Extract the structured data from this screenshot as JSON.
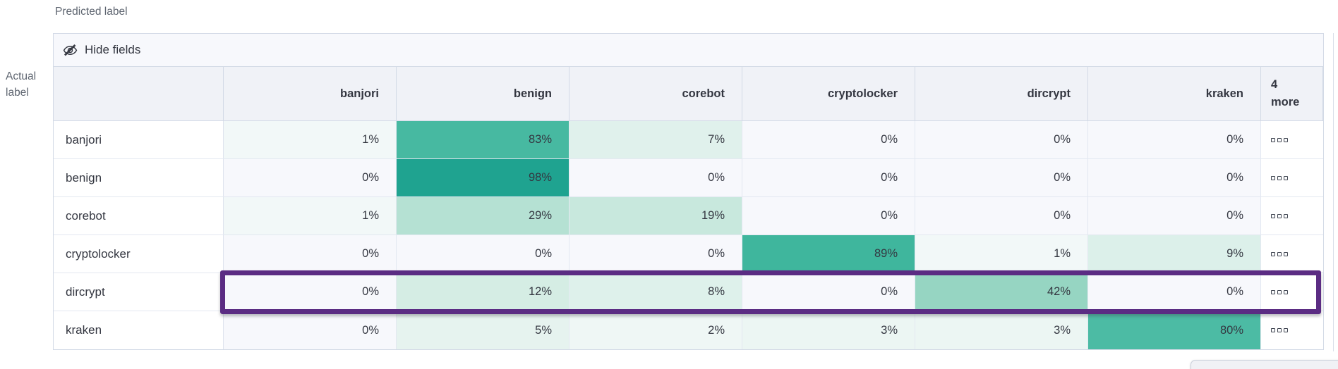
{
  "axes": {
    "predicted": "Predicted label",
    "actual_line1": "Actual",
    "actual_line2": "label"
  },
  "toolbar": {
    "hide_fields": "Hide fields"
  },
  "highlight": {
    "row": "dircrypt",
    "color": "#5B2C83"
  },
  "chart_data": {
    "type": "heatmap",
    "x_axis_label": "Predicted label",
    "y_axis_label": "Actual label",
    "columns": [
      "banjori",
      "benign",
      "corebot",
      "cryptolocker",
      "dircrypt",
      "kraken"
    ],
    "more_column": {
      "line1": "4",
      "line2": "more",
      "hidden_column_count": 4
    },
    "rows": [
      {
        "label": "banjori",
        "values": [
          "1%",
          "83%",
          "7%",
          "0%",
          "0%",
          "0%"
        ],
        "highlighted": false
      },
      {
        "label": "benign",
        "values": [
          "0%",
          "98%",
          "0%",
          "0%",
          "0%",
          "0%"
        ],
        "highlighted": false
      },
      {
        "label": "corebot",
        "values": [
          "1%",
          "29%",
          "19%",
          "0%",
          "0%",
          "0%"
        ],
        "highlighted": false
      },
      {
        "label": "cryptolocker",
        "values": [
          "0%",
          "0%",
          "0%",
          "89%",
          "1%",
          "9%"
        ],
        "highlighted": false
      },
      {
        "label": "dircrypt",
        "values": [
          "0%",
          "12%",
          "8%",
          "0%",
          "42%",
          "0%"
        ],
        "highlighted": true
      },
      {
        "label": "kraken",
        "values": [
          "0%",
          "5%",
          "2%",
          "3%",
          "3%",
          "80%"
        ],
        "highlighted": false
      }
    ],
    "value_colors": {
      "0%": "#F7F8FC",
      "1%": "#F2F8F8",
      "2%": "#EFF7F5",
      "3%": "#ECF6F3",
      "5%": "#E6F3EF",
      "7%": "#E0F1EC",
      "8%": "#DEF1EB",
      "9%": "#DCF0EA",
      "12%": "#D5EDE4",
      "19%": "#C8E8DD",
      "29%": "#B5E1D3",
      "42%": "#96D5C2",
      "80%": "#4CBBA4",
      "83%": "#47B9A1",
      "89%": "#3FB69D",
      "98%": "#1FA390"
    },
    "grid": true,
    "legend": false
  }
}
